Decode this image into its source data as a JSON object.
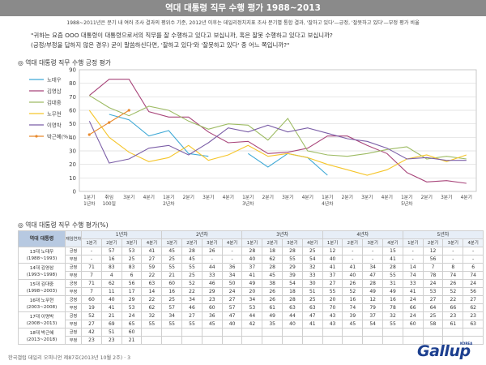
{
  "header": {
    "title": "역대 대통령 직무 수행 평가 1988~2013"
  },
  "subtitle": "1988~2011년은 분기 내 여러 조사 결과의 평위수 기준, 2012년 이후는 데일리정치지표 조사 분기별 통합 결과, '잘하고 있다'—긍정, '잘못하고 있다'—부정 평가 비율",
  "question": {
    "line1": "\"귀하는 요즘 OOO 대통령이 대통령으로서의 직무를 잘 수행하고 있다고 보십니까, 혹은 잘못 수행하고 있다고 보십니까?",
    "line2": "(긍정/부정을 답하지 않은 경우) 굳이 말씀하신다면, '잘하고 있다'와 '잘못하고 있다' 중 어느 쪽입니까?\""
  },
  "sections": {
    "chart_title": "역대 대통령 직무 수행 긍정 평가",
    "table_title": "역대 대통령 직무 수행 평가(%)"
  },
  "chart_data": {
    "type": "line",
    "ylabel": "",
    "ylim": [
      0,
      90
    ],
    "y_ticks": [
      "0",
      "10",
      "20",
      "30",
      "40",
      "50",
      "60",
      "70",
      "80",
      "90"
    ],
    "x_labels": [
      [
        "1분기",
        "1년차"
      ],
      [
        "취임",
        "100일"
      ],
      [
        "3분기"
      ],
      [
        "4분기"
      ],
      [
        "1분기",
        "2년차"
      ],
      [
        "2분기"
      ],
      [
        "3분기"
      ],
      [
        "4분기"
      ],
      [
        "1분기",
        "3년차"
      ],
      [
        "2분기"
      ],
      [
        "3분기"
      ],
      [
        "4분기"
      ],
      [
        "1분기",
        "4년차"
      ],
      [
        "2분기"
      ],
      [
        "3분기"
      ],
      [
        "4분기"
      ],
      [
        "1분기",
        "5년차"
      ],
      [
        "2분기"
      ],
      [
        "3분기"
      ],
      [
        "4분기"
      ]
    ],
    "grid": "horizontal",
    "legend_position": "left",
    "series": [
      {
        "name": "노태우",
        "color": "#3fa9d6",
        "marker": false,
        "values": [
          null,
          57,
          53,
          41,
          45,
          28,
          26,
          null,
          28,
          18,
          28,
          25,
          12,
          null,
          null,
          15,
          null,
          12,
          null,
          null
        ]
      },
      {
        "name": "김영삼",
        "color": "#a8457a",
        "marker": false,
        "values": [
          71,
          83,
          83,
          59,
          55,
          55,
          44,
          36,
          37,
          28,
          29,
          32,
          41,
          41,
          34,
          28,
          14,
          7,
          8,
          6
        ]
      },
      {
        "name": "김대중",
        "color": "#9dbb63",
        "marker": false,
        "values": [
          71,
          62,
          56,
          63,
          60,
          52,
          46,
          50,
          49,
          38,
          54,
          30,
          27,
          26,
          28,
          31,
          33,
          24,
          26,
          24
        ]
      },
      {
        "name": "노무현",
        "color": "#f5c52a",
        "marker": false,
        "values": [
          60,
          40,
          29,
          22,
          25,
          34,
          23,
          27,
          34,
          26,
          28,
          25,
          20,
          16,
          12,
          16,
          24,
          27,
          22,
          27
        ]
      },
      {
        "name": "이명박",
        "color": "#7b5ea7",
        "marker": false,
        "values": [
          52,
          21,
          24,
          32,
          34,
          27,
          36,
          47,
          44,
          49,
          44,
          47,
          43,
          39,
          37,
          32,
          24,
          25,
          23,
          23
        ]
      },
      {
        "name": "박근혜(%)",
        "color": "#e8892c",
        "marker": true,
        "values": [
          42,
          51,
          60,
          null,
          null,
          null,
          null,
          null,
          null,
          null,
          null,
          null,
          null,
          null,
          null,
          null,
          null,
          null,
          null,
          null
        ]
      }
    ]
  },
  "table": {
    "header_name": "역대 대통령",
    "header_yearsep": "재임연차",
    "years": [
      "1년차",
      "2년차",
      "3년차",
      "4년차",
      "5년차"
    ],
    "quarters_first": [
      "1분기",
      "2분기",
      "3분기",
      "4분기"
    ],
    "quarters": [
      "1분기",
      "2분기",
      "3분기",
      "4분기"
    ],
    "type_pos": "긍정",
    "type_neg": "부정",
    "rows": [
      {
        "name1": "13대 노태우",
        "name2": "(1988~1993)",
        "pos": [
          "-",
          "57",
          "53",
          "41",
          "45",
          "28",
          "26",
          "-",
          "28",
          "18",
          "28",
          "25",
          "12",
          "-",
          "-",
          "15",
          "-",
          "12",
          "-",
          "-"
        ],
        "neg": [
          "-",
          "16",
          "25",
          "27",
          "25",
          "45",
          "-",
          "-",
          "40",
          "62",
          "55",
          "54",
          "40",
          "-",
          "-",
          "41",
          "-",
          "56",
          "-",
          "-"
        ]
      },
      {
        "name1": "14대 김영삼",
        "name2": "(1993~1998)",
        "pos": [
          "71",
          "83",
          "83",
          "59",
          "55",
          "55",
          "44",
          "36",
          "37",
          "28",
          "29",
          "32",
          "41",
          "41",
          "34",
          "28",
          "14",
          "7",
          "8",
          "6"
        ],
        "neg": [
          "7",
          "4",
          "6",
          "22",
          "21",
          "25",
          "33",
          "34",
          "41",
          "45",
          "39",
          "33",
          "37",
          "40",
          "47",
          "55",
          "74",
          "78",
          "74",
          "74"
        ]
      },
      {
        "name1": "15대 김대중",
        "name2": "(1998~2003)",
        "pos": [
          "71",
          "62",
          "56",
          "63",
          "60",
          "52",
          "46",
          "50",
          "49",
          "38",
          "54",
          "30",
          "27",
          "26",
          "28",
          "31",
          "33",
          "24",
          "26",
          "24"
        ]
      },
      {
        "name1": "",
        "name2": "",
        "pos": [],
        "neg": [
          "7",
          "11",
          "17",
          "14",
          "16",
          "22",
          "29",
          "24",
          "20",
          "26",
          "18",
          "51",
          "55",
          "52",
          "49",
          "49",
          "41",
          "53",
          "52",
          "56"
        ]
      },
      {
        "name1": "16대 노무현",
        "name2": "(2003~2008)",
        "pos": [
          "60",
          "40",
          "29",
          "22",
          "25",
          "34",
          "23",
          "27",
          "34",
          "26",
          "28",
          "25",
          "20",
          "16",
          "12",
          "16",
          "24",
          "27",
          "22",
          "27"
        ],
        "neg": [
          "19",
          "41",
          "53",
          "62",
          "57",
          "46",
          "60",
          "57",
          "53",
          "61",
          "63",
          "63",
          "70",
          "74",
          "79",
          "78",
          "66",
          "64",
          "66",
          "62"
        ]
      },
      {
        "name1": "17대 이명박",
        "name2": "(2008~2013)",
        "pos": [
          "52",
          "21",
          "24",
          "32",
          "34",
          "27",
          "36",
          "47",
          "44",
          "49",
          "44",
          "47",
          "43",
          "39",
          "37",
          "32",
          "24",
          "25",
          "23",
          "23"
        ],
        "neg": [
          "27",
          "69",
          "65",
          "55",
          "55",
          "55",
          "45",
          "40",
          "42",
          "35",
          "40",
          "41",
          "43",
          "45",
          "54",
          "55",
          "60",
          "58",
          "61",
          "63"
        ]
      },
      {
        "name1": "18대 박근혜",
        "name2": "(2013~2018)",
        "pos": [
          "42",
          "51",
          "60",
          "",
          "",
          "",
          "",
          "",
          "",
          "",
          "",
          "",
          "",
          "",
          "",
          "",
          "",
          "",
          "",
          ""
        ],
        "neg": [
          "23",
          "23",
          "21",
          "",
          "",
          "",
          "",
          "",
          "",
          "",
          "",
          "",
          "",
          "",
          "",
          "",
          "",
          "",
          "",
          ""
        ]
      }
    ]
  },
  "footer": "한국갤럽 데일리 오피니언 제87호(2013년 10월 2주) · 3",
  "logo": {
    "text": "Gallup",
    "korea": "KOREA",
    "color": "#1c3f8f"
  }
}
